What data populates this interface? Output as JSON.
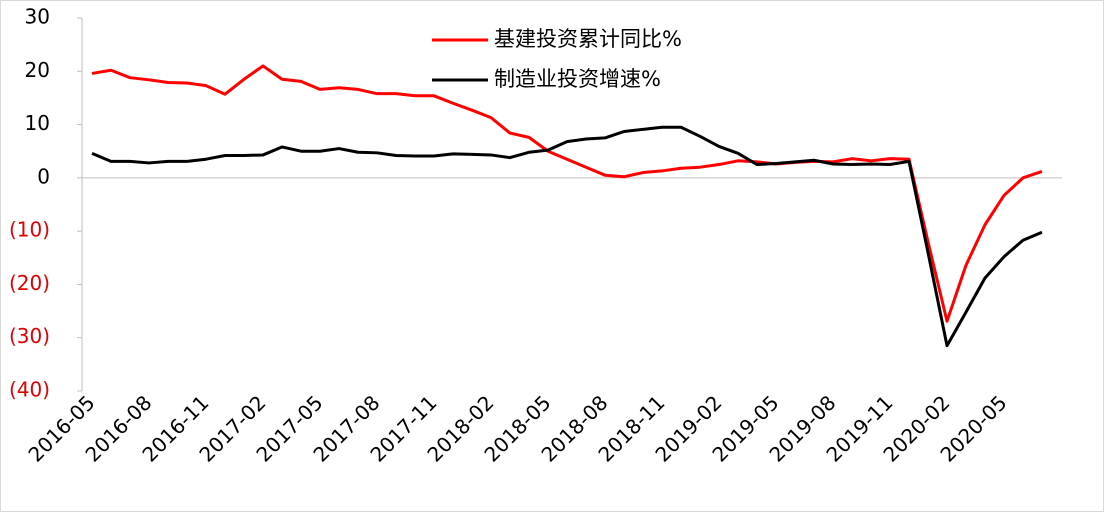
{
  "chart_data": {
    "type": "line",
    "categories": [
      "2016-05",
      null,
      null,
      "2016-08",
      null,
      null,
      "2016-11",
      null,
      null,
      "2017-02",
      null,
      null,
      "2017-05",
      null,
      null,
      "2017-08",
      null,
      null,
      "2017-11",
      null,
      null,
      "2018-02",
      null,
      null,
      "2018-05",
      null,
      null,
      "2018-08",
      null,
      null,
      "2018-11",
      null,
      null,
      "2019-02",
      null,
      null,
      "2019-05",
      null,
      null,
      "2019-08",
      null,
      null,
      "2019-11",
      null,
      null,
      "2020-02",
      null,
      null,
      "2020-05",
      null,
      null
    ],
    "series": [
      {
        "name": "基建投资累计同比%",
        "color": "#ff0000",
        "values": [
          19.6,
          20.2,
          18.8,
          18.4,
          17.9,
          17.8,
          17.3,
          15.7,
          18.5,
          21,
          18.5,
          18.1,
          16.6,
          16.9,
          16.6,
          15.8,
          15.8,
          15.4,
          15.4,
          14.0,
          12.7,
          11.3,
          8.4,
          7.6,
          5.0,
          3.5,
          2.0,
          0.5,
          0.2,
          1.0,
          1.3,
          1.8,
          2.0,
          2.5,
          3.2,
          3.0,
          2.6,
          2.9,
          3.1,
          3.0,
          3.6,
          3.2,
          3.6,
          3.5,
          -12,
          -26.9,
          -16.4,
          -8.8,
          -3.3,
          0.0,
          1.2
        ]
      },
      {
        "name": "制造业投资增速%",
        "color": "#000000",
        "values": [
          4.6,
          3.1,
          3.1,
          2.8,
          3.1,
          3.1,
          3.5,
          4.2,
          4.2,
          4.3,
          5.8,
          5.0,
          5.0,
          5.5,
          4.8,
          4.7,
          4.2,
          4.1,
          4.1,
          4.5,
          4.4,
          4.3,
          3.8,
          4.8,
          5.2,
          6.8,
          7.3,
          7.5,
          8.7,
          9.1,
          9.5,
          9.5,
          7.8,
          5.9,
          4.6,
          2.5,
          2.7,
          3.0,
          3.3,
          2.6,
          2.5,
          2.6,
          2.5,
          3.1,
          -14,
          -31.5,
          -25.2,
          -18.8,
          -14.8,
          -11.7,
          -10.2
        ]
      }
    ],
    "ylim": [
      -40,
      30
    ],
    "yticks": [
      {
        "value": -40,
        "label": "(40)"
      },
      {
        "value": -30,
        "label": "(30)"
      },
      {
        "value": -20,
        "label": "(20)"
      },
      {
        "value": -10,
        "label": "(10)"
      },
      0,
      10,
      20,
      30
    ],
    "legend": "top"
  }
}
